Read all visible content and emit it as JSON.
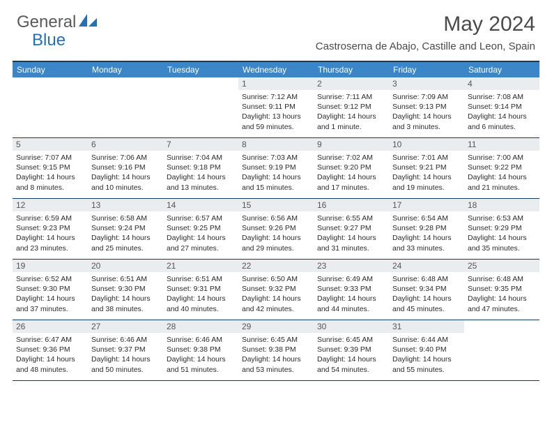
{
  "brand": {
    "part1": "General",
    "part2": "Blue"
  },
  "title": "May 2024",
  "location": "Castroserna de Abajo, Castille and Leon, Spain",
  "colors": {
    "header_bg": "#3a86c8",
    "header_text": "#ffffff",
    "border": "#1a3a5a",
    "daynum_bg": "#e9edf0",
    "brand_gray": "#5a5a5a",
    "brand_blue": "#2270b8"
  },
  "day_labels": [
    "Sunday",
    "Monday",
    "Tuesday",
    "Wednesday",
    "Thursday",
    "Friday",
    "Saturday"
  ],
  "weeks": [
    [
      {
        "blank": true
      },
      {
        "blank": true
      },
      {
        "blank": true
      },
      {
        "num": "1",
        "sunrise": "7:12 AM",
        "sunset": "9:11 PM",
        "daylight": "13 hours and 59 minutes."
      },
      {
        "num": "2",
        "sunrise": "7:11 AM",
        "sunset": "9:12 PM",
        "daylight": "14 hours and 1 minute."
      },
      {
        "num": "3",
        "sunrise": "7:09 AM",
        "sunset": "9:13 PM",
        "daylight": "14 hours and 3 minutes."
      },
      {
        "num": "4",
        "sunrise": "7:08 AM",
        "sunset": "9:14 PM",
        "daylight": "14 hours and 6 minutes."
      }
    ],
    [
      {
        "num": "5",
        "sunrise": "7:07 AM",
        "sunset": "9:15 PM",
        "daylight": "14 hours and 8 minutes."
      },
      {
        "num": "6",
        "sunrise": "7:06 AM",
        "sunset": "9:16 PM",
        "daylight": "14 hours and 10 minutes."
      },
      {
        "num": "7",
        "sunrise": "7:04 AM",
        "sunset": "9:18 PM",
        "daylight": "14 hours and 13 minutes."
      },
      {
        "num": "8",
        "sunrise": "7:03 AM",
        "sunset": "9:19 PM",
        "daylight": "14 hours and 15 minutes."
      },
      {
        "num": "9",
        "sunrise": "7:02 AM",
        "sunset": "9:20 PM",
        "daylight": "14 hours and 17 minutes."
      },
      {
        "num": "10",
        "sunrise": "7:01 AM",
        "sunset": "9:21 PM",
        "daylight": "14 hours and 19 minutes."
      },
      {
        "num": "11",
        "sunrise": "7:00 AM",
        "sunset": "9:22 PM",
        "daylight": "14 hours and 21 minutes."
      }
    ],
    [
      {
        "num": "12",
        "sunrise": "6:59 AM",
        "sunset": "9:23 PM",
        "daylight": "14 hours and 23 minutes."
      },
      {
        "num": "13",
        "sunrise": "6:58 AM",
        "sunset": "9:24 PM",
        "daylight": "14 hours and 25 minutes."
      },
      {
        "num": "14",
        "sunrise": "6:57 AM",
        "sunset": "9:25 PM",
        "daylight": "14 hours and 27 minutes."
      },
      {
        "num": "15",
        "sunrise": "6:56 AM",
        "sunset": "9:26 PM",
        "daylight": "14 hours and 29 minutes."
      },
      {
        "num": "16",
        "sunrise": "6:55 AM",
        "sunset": "9:27 PM",
        "daylight": "14 hours and 31 minutes."
      },
      {
        "num": "17",
        "sunrise": "6:54 AM",
        "sunset": "9:28 PM",
        "daylight": "14 hours and 33 minutes."
      },
      {
        "num": "18",
        "sunrise": "6:53 AM",
        "sunset": "9:29 PM",
        "daylight": "14 hours and 35 minutes."
      }
    ],
    [
      {
        "num": "19",
        "sunrise": "6:52 AM",
        "sunset": "9:30 PM",
        "daylight": "14 hours and 37 minutes."
      },
      {
        "num": "20",
        "sunrise": "6:51 AM",
        "sunset": "9:30 PM",
        "daylight": "14 hours and 38 minutes."
      },
      {
        "num": "21",
        "sunrise": "6:51 AM",
        "sunset": "9:31 PM",
        "daylight": "14 hours and 40 minutes."
      },
      {
        "num": "22",
        "sunrise": "6:50 AM",
        "sunset": "9:32 PM",
        "daylight": "14 hours and 42 minutes."
      },
      {
        "num": "23",
        "sunrise": "6:49 AM",
        "sunset": "9:33 PM",
        "daylight": "14 hours and 44 minutes."
      },
      {
        "num": "24",
        "sunrise": "6:48 AM",
        "sunset": "9:34 PM",
        "daylight": "14 hours and 45 minutes."
      },
      {
        "num": "25",
        "sunrise": "6:48 AM",
        "sunset": "9:35 PM",
        "daylight": "14 hours and 47 minutes."
      }
    ],
    [
      {
        "num": "26",
        "sunrise": "6:47 AM",
        "sunset": "9:36 PM",
        "daylight": "14 hours and 48 minutes."
      },
      {
        "num": "27",
        "sunrise": "6:46 AM",
        "sunset": "9:37 PM",
        "daylight": "14 hours and 50 minutes."
      },
      {
        "num": "28",
        "sunrise": "6:46 AM",
        "sunset": "9:38 PM",
        "daylight": "14 hours and 51 minutes."
      },
      {
        "num": "29",
        "sunrise": "6:45 AM",
        "sunset": "9:38 PM",
        "daylight": "14 hours and 53 minutes."
      },
      {
        "num": "30",
        "sunrise": "6:45 AM",
        "sunset": "9:39 PM",
        "daylight": "14 hours and 54 minutes."
      },
      {
        "num": "31",
        "sunrise": "6:44 AM",
        "sunset": "9:40 PM",
        "daylight": "14 hours and 55 minutes."
      },
      {
        "blank": true
      }
    ]
  ],
  "labels": {
    "sunrise": "Sunrise:",
    "sunset": "Sunset:",
    "daylight": "Daylight:"
  }
}
